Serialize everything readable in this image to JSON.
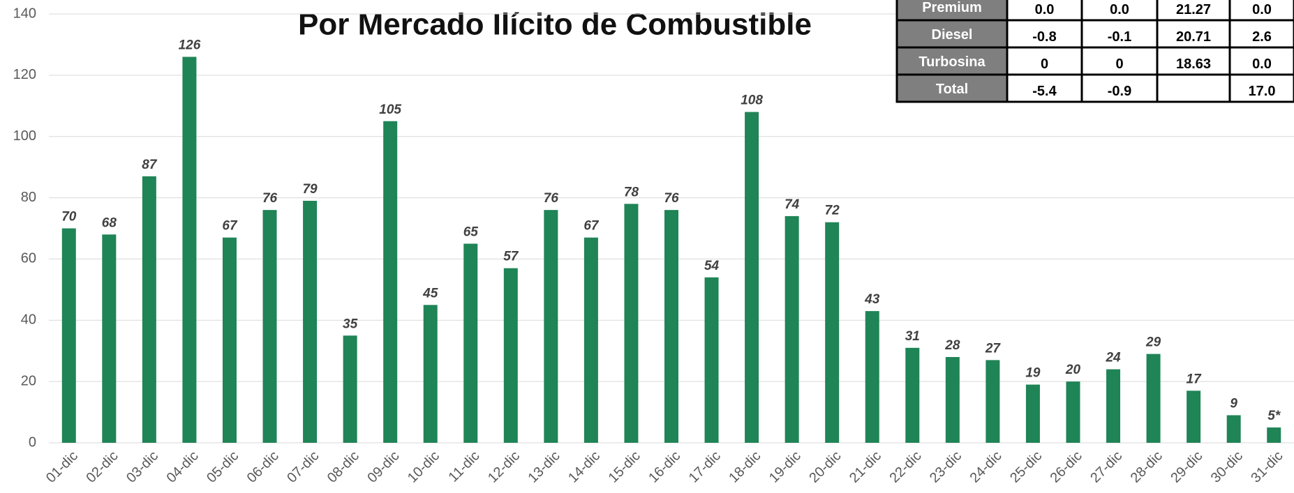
{
  "chart_data": {
    "type": "bar",
    "title": "Por Mercado Ilícito de Combustible",
    "categories": [
      "01-dic",
      "02-dic",
      "03-dic",
      "04-dic",
      "05-dic",
      "06-dic",
      "07-dic",
      "08-dic",
      "09-dic",
      "10-dic",
      "11-dic",
      "12-dic",
      "13-dic",
      "14-dic",
      "15-dic",
      "16-dic",
      "17-dic",
      "18-dic",
      "19-dic",
      "20-dic",
      "21-dic",
      "22-dic",
      "23-dic",
      "24-dic",
      "25-dic",
      "26-dic",
      "27-dic",
      "28-dic",
      "29-dic",
      "30-dic",
      "31-dic"
    ],
    "values": [
      70,
      68,
      87,
      126,
      67,
      76,
      79,
      35,
      105,
      45,
      65,
      57,
      76,
      67,
      78,
      76,
      54,
      108,
      74,
      72,
      43,
      31,
      28,
      27,
      19,
      20,
      24,
      29,
      17,
      9,
      5
    ],
    "value_labels": [
      "70",
      "68",
      "87",
      "126",
      "67",
      "76",
      "79",
      "35",
      "105",
      "45",
      "65",
      "57",
      "76",
      "67",
      "78",
      "76",
      "54",
      "108",
      "74",
      "72",
      "43",
      "31",
      "28",
      "27",
      "19",
      "20",
      "24",
      "29",
      "17",
      "9",
      "5*"
    ],
    "color": "#1f8456",
    "ylim": [
      0,
      140
    ],
    "yticks": [
      0,
      20,
      40,
      60,
      80,
      100,
      120,
      140
    ],
    "grid": true
  },
  "table": {
    "rows": [
      {
        "label": "Premium",
        "cells": [
          "0.0",
          "0.0",
          "21.27",
          "0.0"
        ]
      },
      {
        "label": "Diesel",
        "cells": [
          "-0.8",
          "-0.1",
          "20.71",
          "2.6"
        ]
      },
      {
        "label": "Turbosina",
        "cells": [
          "0",
          "0",
          "18.63",
          "0.0"
        ]
      },
      {
        "label": "Total",
        "cells": [
          "-5.4",
          "-0.9",
          null,
          "17.0"
        ]
      }
    ]
  }
}
